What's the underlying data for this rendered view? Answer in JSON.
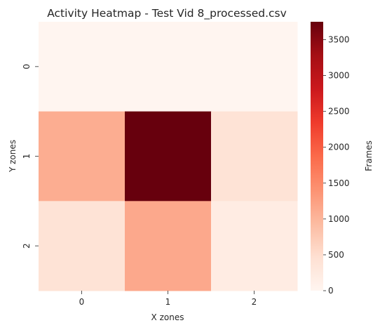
{
  "chart_data": {
    "type": "heatmap",
    "title": "Activity Heatmap - Test Vid 8_processed.csv",
    "xlabel": "X zones",
    "ylabel": "Y zones",
    "x_categories": [
      "0",
      "1",
      "2"
    ],
    "y_categories": [
      "0",
      "1",
      "2"
    ],
    "values": [
      [
        0,
        0,
        0
      ],
      [
        1100,
        3750,
        400
      ],
      [
        400,
        1150,
        200
      ]
    ],
    "colorbar": {
      "label": "Frames",
      "range": [
        0,
        3750
      ],
      "ticks": [
        0,
        500,
        1000,
        1500,
        2000,
        2500,
        3000,
        3500
      ],
      "colormap": "Reds"
    },
    "grid": false,
    "legend": "colorbar-right"
  }
}
